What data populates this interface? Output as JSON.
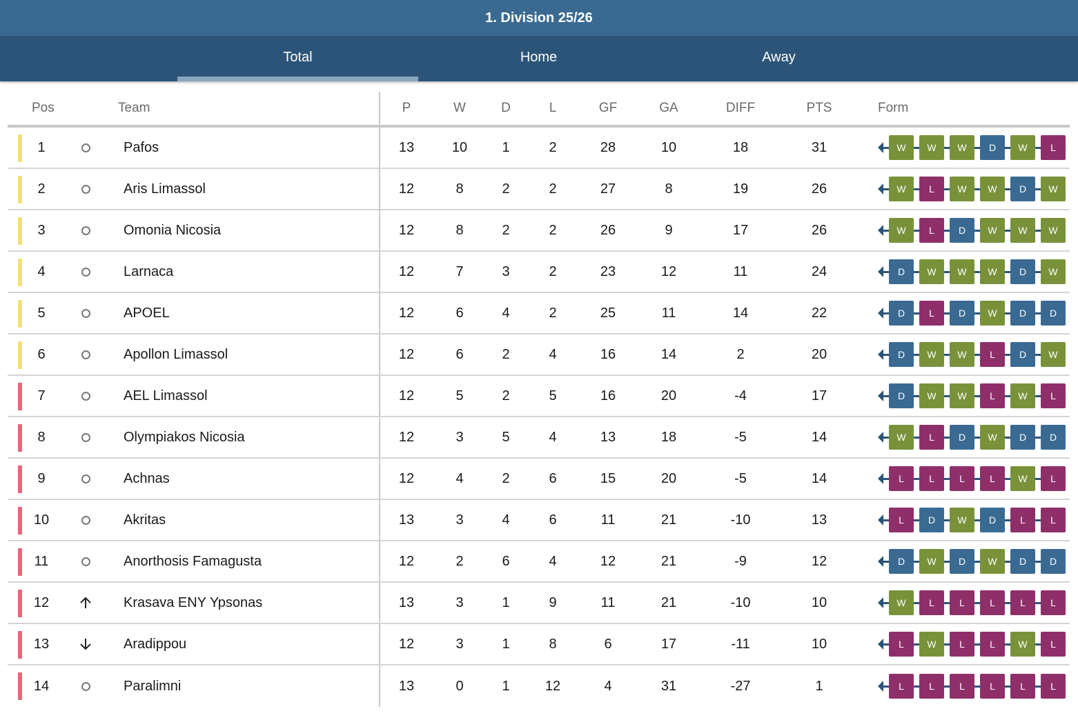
{
  "title": "1. Division 25/26",
  "tabs": [
    {
      "label": "Total",
      "active": true
    },
    {
      "label": "Home",
      "active": false
    },
    {
      "label": "Away",
      "active": false
    }
  ],
  "columns": {
    "pos": "Pos",
    "team": "Team",
    "p": "P",
    "w": "W",
    "d": "D",
    "l": "L",
    "gf": "GF",
    "ga": "GA",
    "diff": "DIFF",
    "pts": "PTS",
    "form": "Form"
  },
  "colors": {
    "zone_top": "#f3e07a",
    "zone_bottom": "#e8657a",
    "W": "#79923a",
    "D": "#3a6a92",
    "L": "#8e2f6a"
  },
  "rows": [
    {
      "pos": "1",
      "trend": "same",
      "zone": "top",
      "team": "Pafos",
      "p": "13",
      "w": "10",
      "d": "1",
      "l": "2",
      "gf": "28",
      "ga": "10",
      "diff": "18",
      "pts": "31",
      "form": [
        "W",
        "W",
        "W",
        "D",
        "W",
        "L"
      ]
    },
    {
      "pos": "2",
      "trend": "same",
      "zone": "top",
      "team": "Aris Limassol",
      "p": "12",
      "w": "8",
      "d": "2",
      "l": "2",
      "gf": "27",
      "ga": "8",
      "diff": "19",
      "pts": "26",
      "form": [
        "W",
        "L",
        "W",
        "W",
        "D",
        "W"
      ]
    },
    {
      "pos": "3",
      "trend": "same",
      "zone": "top",
      "team": "Omonia Nicosia",
      "p": "12",
      "w": "8",
      "d": "2",
      "l": "2",
      "gf": "26",
      "ga": "9",
      "diff": "17",
      "pts": "26",
      "form": [
        "W",
        "L",
        "D",
        "W",
        "W",
        "W"
      ]
    },
    {
      "pos": "4",
      "trend": "same",
      "zone": "top",
      "team": "Larnaca",
      "p": "12",
      "w": "7",
      "d": "3",
      "l": "2",
      "gf": "23",
      "ga": "12",
      "diff": "11",
      "pts": "24",
      "form": [
        "D",
        "W",
        "W",
        "W",
        "D",
        "W"
      ]
    },
    {
      "pos": "5",
      "trend": "same",
      "zone": "top",
      "team": "APOEL",
      "p": "12",
      "w": "6",
      "d": "4",
      "l": "2",
      "gf": "25",
      "ga": "11",
      "diff": "14",
      "pts": "22",
      "form": [
        "D",
        "L",
        "D",
        "W",
        "D",
        "D"
      ]
    },
    {
      "pos": "6",
      "trend": "same",
      "zone": "top",
      "team": "Apollon Limassol",
      "p": "12",
      "w": "6",
      "d": "2",
      "l": "4",
      "gf": "16",
      "ga": "14",
      "diff": "2",
      "pts": "20",
      "form": [
        "D",
        "W",
        "W",
        "L",
        "D",
        "W"
      ]
    },
    {
      "pos": "7",
      "trend": "same",
      "zone": "bottom",
      "team": "AEL Limassol",
      "p": "12",
      "w": "5",
      "d": "2",
      "l": "5",
      "gf": "16",
      "ga": "20",
      "diff": "-4",
      "pts": "17",
      "form": [
        "D",
        "W",
        "W",
        "L",
        "W",
        "L"
      ]
    },
    {
      "pos": "8",
      "trend": "same",
      "zone": "bottom",
      "team": "Olympiakos Nicosia",
      "p": "12",
      "w": "3",
      "d": "5",
      "l": "4",
      "gf": "13",
      "ga": "18",
      "diff": "-5",
      "pts": "14",
      "form": [
        "W",
        "L",
        "D",
        "W",
        "D",
        "D"
      ]
    },
    {
      "pos": "9",
      "trend": "same",
      "zone": "bottom",
      "team": "Achnas",
      "p": "12",
      "w": "4",
      "d": "2",
      "l": "6",
      "gf": "15",
      "ga": "20",
      "diff": "-5",
      "pts": "14",
      "form": [
        "L",
        "L",
        "L",
        "L",
        "W",
        "L"
      ]
    },
    {
      "pos": "10",
      "trend": "same",
      "zone": "bottom",
      "team": "Akritas",
      "p": "13",
      "w": "3",
      "d": "4",
      "l": "6",
      "gf": "11",
      "ga": "21",
      "diff": "-10",
      "pts": "13",
      "form": [
        "L",
        "D",
        "W",
        "D",
        "L",
        "L"
      ]
    },
    {
      "pos": "11",
      "trend": "same",
      "zone": "bottom",
      "team": "Anorthosis Famagusta",
      "p": "12",
      "w": "2",
      "d": "6",
      "l": "4",
      "gf": "12",
      "ga": "21",
      "diff": "-9",
      "pts": "12",
      "form": [
        "D",
        "W",
        "D",
        "W",
        "D",
        "D"
      ]
    },
    {
      "pos": "12",
      "trend": "up",
      "zone": "bottom",
      "team": "Krasava ENY Ypsonas",
      "p": "13",
      "w": "3",
      "d": "1",
      "l": "9",
      "gf": "11",
      "ga": "21",
      "diff": "-10",
      "pts": "10",
      "form": [
        "W",
        "L",
        "L",
        "L",
        "L",
        "L"
      ]
    },
    {
      "pos": "13",
      "trend": "down",
      "zone": "bottom",
      "team": "Aradippou",
      "p": "12",
      "w": "3",
      "d": "1",
      "l": "8",
      "gf": "6",
      "ga": "17",
      "diff": "-11",
      "pts": "10",
      "form": [
        "L",
        "W",
        "L",
        "L",
        "W",
        "L"
      ]
    },
    {
      "pos": "14",
      "trend": "same",
      "zone": "bottom",
      "team": "Paralimni",
      "p": "13",
      "w": "0",
      "d": "1",
      "l": "12",
      "gf": "4",
      "ga": "31",
      "diff": "-27",
      "pts": "1",
      "form": [
        "L",
        "L",
        "L",
        "L",
        "L",
        "L"
      ]
    }
  ]
}
